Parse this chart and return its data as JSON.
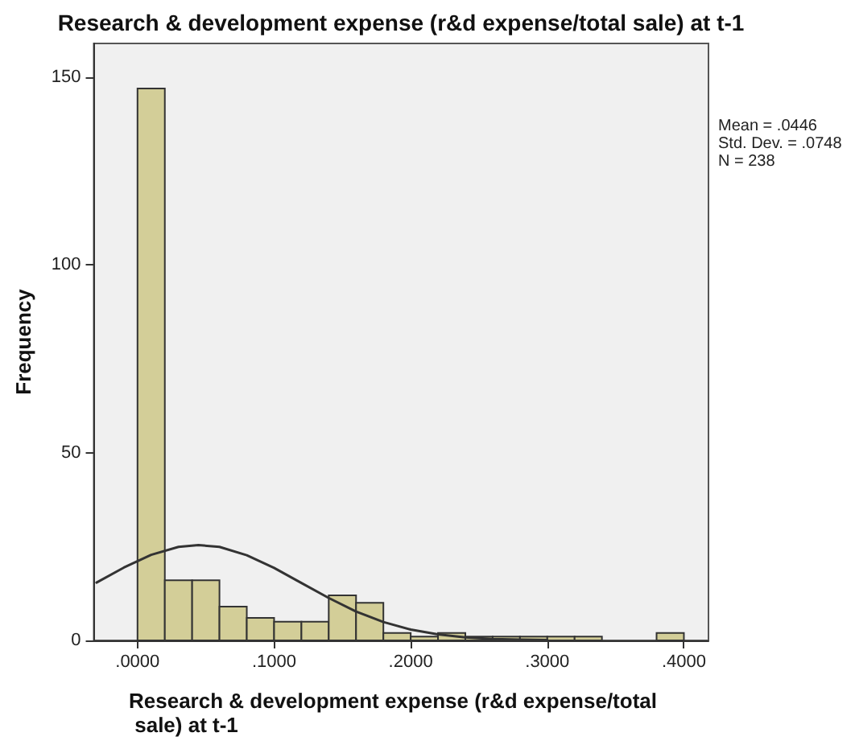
{
  "chart_data": {
    "type": "histogram",
    "title": "Research & development expense (r&d expense/total sale) at t-1",
    "xlabel": "Research & development expense (r&d expense/total sale) at t-1",
    "ylabel": "Frequency",
    "bins": [
      0,
      0.02,
      0.04,
      0.06,
      0.08,
      0.1,
      0.12,
      0.14,
      0.16,
      0.18,
      0.2,
      0.22,
      0.24,
      0.26,
      0.28,
      0.3,
      0.32,
      0.34,
      0.36,
      0.38,
      0.4
    ],
    "values": [
      147,
      16,
      16,
      9,
      6,
      5,
      5,
      12,
      10,
      2,
      1,
      2,
      1,
      1,
      1,
      1,
      1,
      0,
      0,
      2
    ],
    "color": "#d3ce98",
    "series": [
      {
        "type": "line",
        "color": "#333333",
        "x": [
          -0.03,
          -0.01,
          0.01,
          0.03,
          0.0446,
          0.06,
          0.08,
          0.1,
          0.12,
          0.14,
          0.16,
          0.18,
          0.2,
          0.22,
          0.24,
          0.26,
          0.28,
          0.3
        ],
        "values": [
          15.4,
          19.4,
          22.8,
          24.9,
          25.4,
          24.9,
          22.7,
          19.3,
          15.3,
          11.3,
          7.7,
          4.9,
          2.9,
          1.6,
          0.8,
          0.4,
          0.2,
          0.1
        ]
      }
    ],
    "xlim": [
      -0.032,
      0.418
    ],
    "xticks": [
      {
        "value": 0,
        "label": ".0000"
      },
      {
        "value": 0.1,
        "label": ".1000"
      },
      {
        "value": 0.2,
        "label": ".2000"
      },
      {
        "value": 0.3,
        "label": ".3000"
      },
      {
        "value": 0.4,
        "label": ".4000"
      }
    ],
    "ylim": [
      0,
      159
    ],
    "yticks": [
      0,
      50,
      100,
      150
    ],
    "annotations": [
      "Mean = .0446",
      "Std. Dev. = .0748",
      "N = 238"
    ],
    "grid": false
  }
}
